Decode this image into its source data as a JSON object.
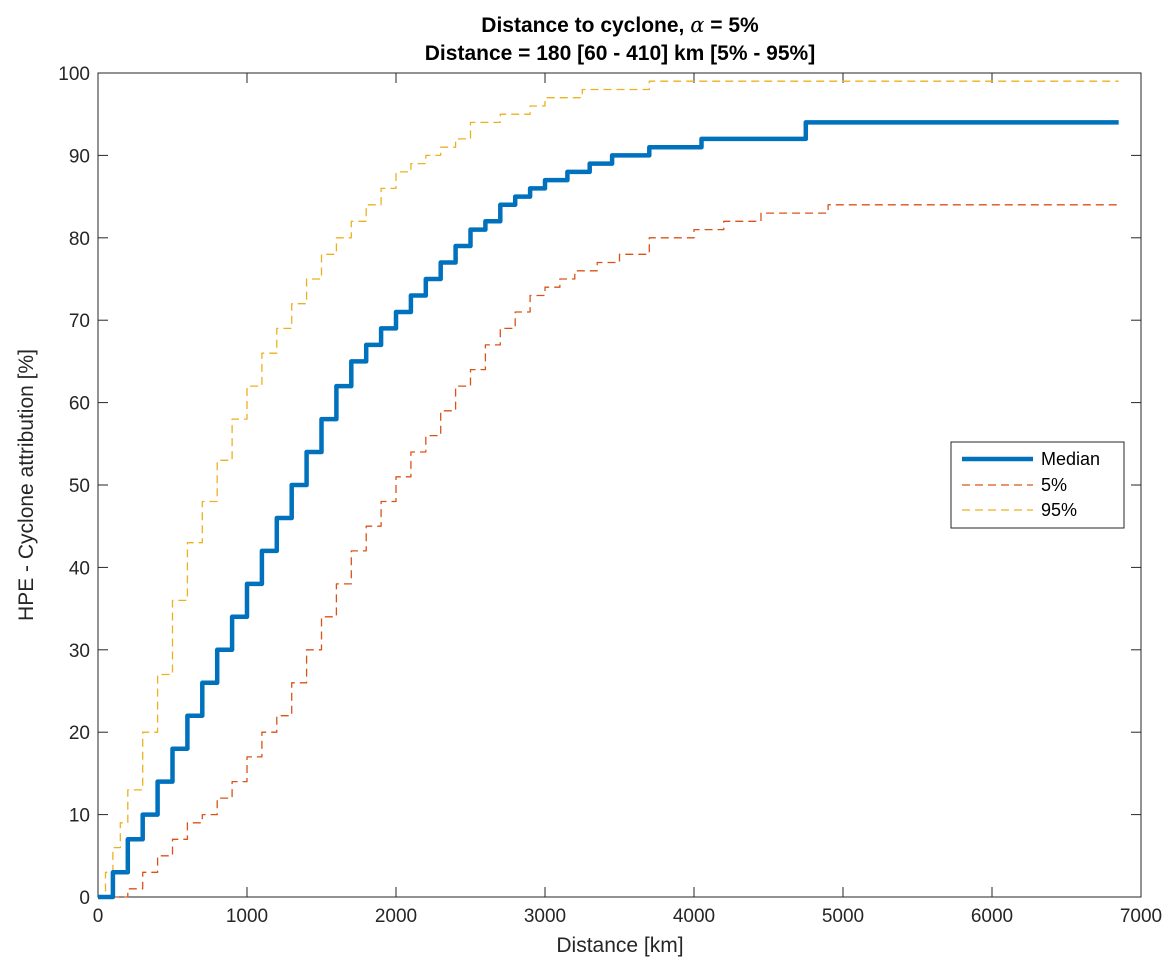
{
  "chart_data": {
    "type": "line",
    "title": "Distance to cyclone, α = 5%",
    "title_parts": {
      "before": "Distance to cyclone, ",
      "symbol": "α",
      "after": " = 5%"
    },
    "subtitle": "Distance = 180 [60 - 410] km [5% - 95%]",
    "xlabel": "Distance [km]",
    "ylabel": "HPE - Cyclone attribution [%]",
    "xlim": [
      0,
      7000
    ],
    "ylim": [
      0,
      100
    ],
    "xticks": [
      0,
      1000,
      2000,
      3000,
      4000,
      5000,
      6000,
      7000
    ],
    "yticks": [
      0,
      10,
      20,
      30,
      40,
      50,
      60,
      70,
      80,
      90,
      100
    ],
    "grid": false,
    "legend_position": "right",
    "series": [
      {
        "name": "Median",
        "color": "#0072BD",
        "style": "solid-thick",
        "x": [
          0,
          100,
          200,
          300,
          400,
          500,
          600,
          700,
          800,
          900,
          1000,
          1100,
          1200,
          1300,
          1400,
          1500,
          1600,
          1700,
          1800,
          1900,
          2000,
          2100,
          2200,
          2300,
          2400,
          2500,
          2600,
          2700,
          2800,
          2900,
          3000,
          3150,
          3300,
          3450,
          3700,
          4050,
          4750,
          6850
        ],
        "y": [
          0,
          3,
          7,
          10,
          14,
          18,
          22,
          26,
          30,
          34,
          38,
          42,
          46,
          50,
          54,
          58,
          62,
          65,
          67,
          69,
          71,
          73,
          75,
          77,
          79,
          81,
          82,
          84,
          85,
          86,
          87,
          88,
          89,
          90,
          91,
          92,
          94,
          94
        ]
      },
      {
        "name": "5%",
        "color": "#D95319",
        "style": "dashed",
        "x": [
          0,
          120,
          200,
          300,
          400,
          500,
          600,
          700,
          800,
          900,
          1000,
          1100,
          1200,
          1300,
          1400,
          1500,
          1600,
          1700,
          1800,
          1900,
          2000,
          2100,
          2200,
          2300,
          2400,
          2500,
          2600,
          2700,
          2800,
          2900,
          3000,
          3100,
          3200,
          3350,
          3500,
          3700,
          4000,
          4200,
          4450,
          4800,
          4900,
          6850
        ],
        "y": [
          0,
          0,
          1,
          3,
          5,
          7,
          9,
          10,
          12,
          14,
          17,
          20,
          22,
          26,
          30,
          34,
          38,
          42,
          45,
          48,
          51,
          54,
          56,
          59,
          62,
          64,
          67,
          69,
          71,
          73,
          74,
          75,
          76,
          77,
          78,
          80,
          81,
          82,
          83,
          83,
          84,
          84
        ]
      },
      {
        "name": "95%",
        "color": "#EDB120",
        "style": "dashed",
        "x": [
          0,
          50,
          100,
          150,
          200,
          300,
          400,
          500,
          600,
          700,
          800,
          900,
          1000,
          1100,
          1200,
          1300,
          1400,
          1500,
          1600,
          1700,
          1800,
          1900,
          2000,
          2100,
          2200,
          2300,
          2400,
          2500,
          2700,
          2900,
          3000,
          3250,
          3650,
          3700,
          6850
        ],
        "y": [
          0,
          3,
          6,
          9,
          13,
          20,
          27,
          36,
          43,
          48,
          53,
          58,
          62,
          66,
          69,
          72,
          75,
          78,
          80,
          82,
          84,
          86,
          88,
          89,
          90,
          91,
          92,
          94,
          95,
          96,
          97,
          98,
          98,
          99,
          99
        ]
      }
    ]
  }
}
